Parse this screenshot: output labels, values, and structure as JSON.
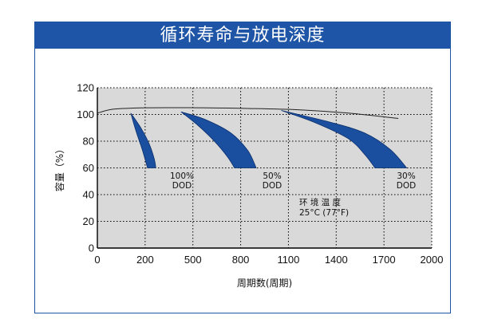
{
  "colors": {
    "accent": "#1f55a6",
    "band": "#1a4fa0",
    "plot_bg": "#d9d9d9",
    "grid": "#000000"
  },
  "chart_data": {
    "type": "area",
    "title": "循环寿命与放电深度",
    "xlabel": "周期数(周期)",
    "ylabel": "容量（%）",
    "xlim": [
      0,
      2000
    ],
    "ylim": [
      0,
      120
    ],
    "x_tick_labels": [
      "0",
      "200",
      "500",
      "800",
      "1100",
      "1400",
      "1700",
      "2000"
    ],
    "y_tick_labels": [
      "0",
      "20",
      "40",
      "60",
      "80",
      "100",
      "120"
    ],
    "grid": true,
    "upper_curve": {
      "x": [
        0,
        100,
        300,
        600,
        900,
        1200,
        1500,
        1800
      ],
      "y": [
        101,
        104,
        105,
        105,
        104.5,
        103.5,
        101,
        97
      ]
    },
    "series": [
      {
        "label": [
          "100%",
          "DOD"
        ],
        "upper": {
          "x": [
            200,
            260,
            310,
            340,
            350
          ],
          "y": [
            101,
            90,
            78,
            67,
            60
          ]
        },
        "lower": {
          "x": [
            200,
            230,
            270,
            300
          ],
          "y": [
            101,
            88,
            73,
            60
          ]
        }
      },
      {
        "label": [
          "50%",
          "DOD"
        ],
        "upper": {
          "x": [
            500,
            650,
            800,
            900,
            950
          ],
          "y": [
            102,
            96,
            86,
            73,
            60
          ]
        },
        "lower": {
          "x": [
            500,
            600,
            700,
            780,
            820
          ],
          "y": [
            102,
            92,
            80,
            68,
            60
          ]
        }
      },
      {
        "label": [
          "30%",
          "DOD"
        ],
        "upper": {
          "x": [
            1100,
            1400,
            1600,
            1750,
            1850
          ],
          "y": [
            103,
            94,
            86,
            74,
            60
          ]
        },
        "lower": {
          "x": [
            1100,
            1300,
            1500,
            1600,
            1660
          ],
          "y": [
            103,
            94,
            82,
            70,
            60
          ]
        }
      }
    ],
    "annotation": {
      "line1": "环 境 温 度",
      "line2": "25°C (77°F)"
    }
  }
}
